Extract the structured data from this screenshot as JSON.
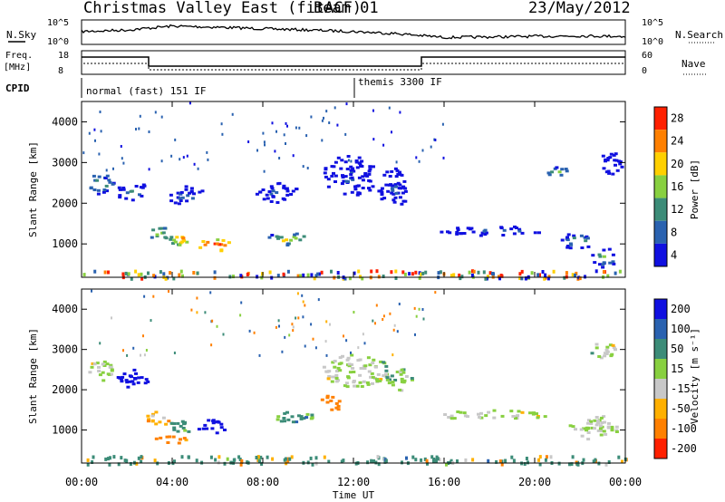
{
  "header": {
    "title": "Christmas Valley East (fitACF)",
    "beam": "Beam 01",
    "date": "23/May/2012"
  },
  "noise_panel": {
    "left_label": "N.Sky",
    "right_label": "N.Search",
    "left_ticks": [
      "10^5",
      "10^0"
    ],
    "right_ticks": [
      "10^5",
      "10^0"
    ]
  },
  "freq_panel": {
    "left_label_1": "Freq.",
    "left_label_2": "[MHz]",
    "right_label": "Nave",
    "left_ticks": [
      "18",
      "8"
    ],
    "right_ticks": [
      "60",
      "0"
    ]
  },
  "cpid_panel": {
    "label": "CPID",
    "modes": [
      "normal (fast) 151 IF",
      "themis 3300 IF"
    ]
  },
  "axes": {
    "ylabel": "Slant Range [km]",
    "xlabel": "Time UT",
    "y_ticks": [
      "1000",
      "2000",
      "3000",
      "4000"
    ],
    "x_ticks": [
      "00:00",
      "04:00",
      "08:00",
      "12:00",
      "16:00",
      "20:00",
      "00:00"
    ]
  },
  "colorbars": {
    "power": {
      "label": "Power [dB]",
      "ticks": [
        "4",
        "8",
        "12",
        "16",
        "20",
        "24",
        "28"
      ],
      "colors": [
        "#1010e0",
        "#2a62b0",
        "#3c8c78",
        "#88d040",
        "#ffd000",
        "#ff8000",
        "#ff2000"
      ]
    },
    "velocity": {
      "label": "Velocity [m s⁻¹]",
      "ticks": [
        "200",
        "100",
        "50",
        "15",
        "-15",
        "-50",
        "-100",
        "-200"
      ],
      "colors": [
        "#1010e0",
        "#2a62b0",
        "#3c8c78",
        "#88d040",
        "#c8c8c8",
        "#ffb000",
        "#ff8000",
        "#ff2000"
      ]
    }
  },
  "chart_data": {
    "type": "heatmap",
    "title": "Christmas Valley East (fitACF)",
    "xlabel": "Time UT",
    "ylabel": "Slant Range [km]",
    "xlim": [
      0,
      24
    ],
    "ylim": [
      180,
      4500
    ],
    "cpid_switch_hours": [
      2.9,
      15.0
    ],
    "power_blobs": [
      {
        "t": 0.8,
        "r": 2500,
        "dt": 0.6,
        "dr": 250,
        "v": 14
      },
      {
        "t": 2.2,
        "r": 2300,
        "dt": 0.7,
        "dr": 250,
        "v": 12
      },
      {
        "t": 3.3,
        "r": 1300,
        "dt": 0.5,
        "dr": 180,
        "v": 18
      },
      {
        "t": 4.3,
        "r": 1150,
        "dt": 0.5,
        "dr": 180,
        "v": 22
      },
      {
        "t": 5.8,
        "r": 1000,
        "dt": 0.8,
        "dr": 150,
        "v": 28
      },
      {
        "t": 4.6,
        "r": 2200,
        "dt": 0.8,
        "dr": 250,
        "v": 8
      },
      {
        "t": 9.0,
        "r": 1150,
        "dt": 0.9,
        "dr": 150,
        "v": 18
      },
      {
        "t": 8.5,
        "r": 2300,
        "dt": 1.0,
        "dr": 250,
        "v": 7
      },
      {
        "t": 11.8,
        "r": 2700,
        "dt": 1.2,
        "dr": 500,
        "v": 6
      },
      {
        "t": 13.7,
        "r": 2400,
        "dt": 0.7,
        "dr": 500,
        "v": 6
      },
      {
        "t": 18.0,
        "r": 1350,
        "dt": 2.5,
        "dr": 120,
        "v": 8
      },
      {
        "t": 21.8,
        "r": 1100,
        "dt": 0.7,
        "dr": 200,
        "v": 14
      },
      {
        "t": 23.0,
        "r": 700,
        "dt": 0.6,
        "dr": 250,
        "v": 12
      },
      {
        "t": 21.0,
        "r": 2800,
        "dt": 0.5,
        "dr": 120,
        "v": 16
      },
      {
        "t": 23.3,
        "r": 3000,
        "dt": 0.5,
        "dr": 300,
        "v": 8
      }
    ],
    "velocity_blobs": [
      {
        "t": 0.8,
        "r": 2500,
        "dt": 0.6,
        "dr": 250,
        "v": 0
      },
      {
        "t": 2.2,
        "r": 2300,
        "dt": 0.7,
        "dr": 250,
        "v": 200
      },
      {
        "t": 3.3,
        "r": 1300,
        "dt": 0.5,
        "dr": 180,
        "v": -50
      },
      {
        "t": 4.4,
        "r": 1150,
        "dt": 0.6,
        "dr": 180,
        "v": 50
      },
      {
        "t": 5.7,
        "r": 1100,
        "dt": 0.6,
        "dr": 200,
        "v": 200
      },
      {
        "t": 4.0,
        "r": 800,
        "dt": 0.8,
        "dr": 100,
        "v": -100
      },
      {
        "t": 9.2,
        "r": 1350,
        "dt": 1.0,
        "dr": 150,
        "v": 50
      },
      {
        "t": 11.0,
        "r": 1700,
        "dt": 0.5,
        "dr": 200,
        "v": -100
      },
      {
        "t": 12.0,
        "r": 2500,
        "dt": 1.5,
        "dr": 400,
        "v": 0
      },
      {
        "t": 14.0,
        "r": 2300,
        "dt": 0.6,
        "dr": 300,
        "v": 15
      },
      {
        "t": 18.0,
        "r": 1400,
        "dt": 2.5,
        "dr": 120,
        "v": 0
      },
      {
        "t": 22.5,
        "r": 1100,
        "dt": 1.2,
        "dr": 300,
        "v": 0
      },
      {
        "t": 23.0,
        "r": 3000,
        "dt": 0.6,
        "dr": 200,
        "v": 0
      }
    ],
    "noise_sky_profile": [
      [
        0,
        0.55
      ],
      [
        2,
        0.62
      ],
      [
        4,
        0.8
      ],
      [
        6,
        0.75
      ],
      [
        8,
        0.68
      ],
      [
        10,
        0.62
      ],
      [
        12,
        0.55
      ],
      [
        14,
        0.45
      ],
      [
        16,
        0.28
      ],
      [
        18,
        0.3
      ],
      [
        20,
        0.33
      ],
      [
        22,
        0.35
      ],
      [
        24,
        0.33
      ]
    ]
  }
}
